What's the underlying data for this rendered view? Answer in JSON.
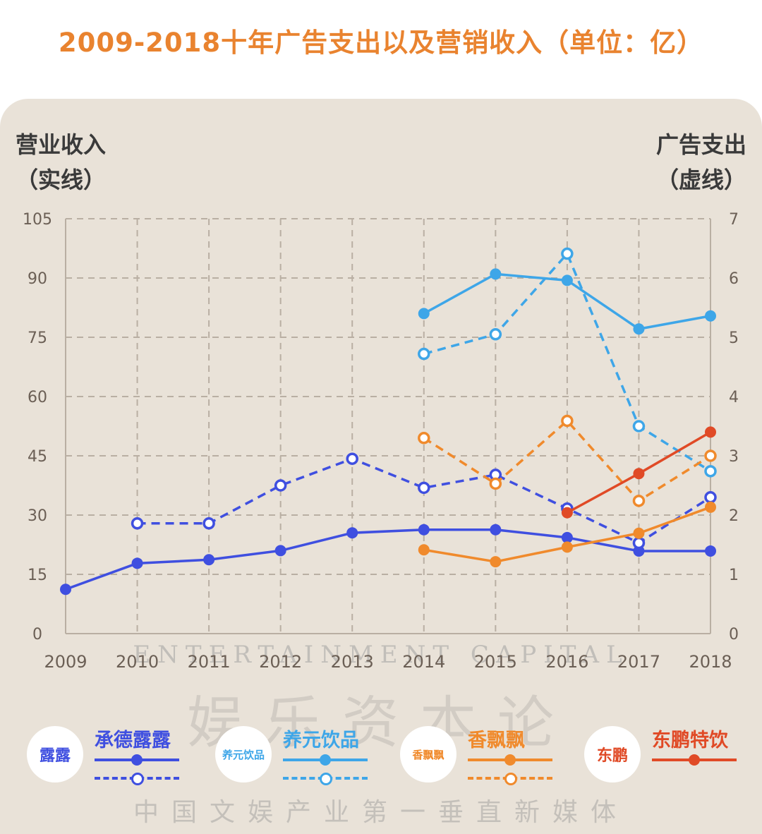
{
  "title": "2009-2018十年广告支出以及营销收入（单位：亿）",
  "left_axis_title": [
    "营业收入",
    "（实线）"
  ],
  "right_axis_title": [
    "广告支出",
    "（虚线）"
  ],
  "watermark_en": "ENTERTAINMENT CAPITAL",
  "watermark_cn_big": "娱乐资本论",
  "watermark_cn": "中国文娱产业第一垂直新媒体",
  "colors": {
    "chengde": "#3f4fe0",
    "yangyuan": "#3ea6e8",
    "xiangpiaopiao": "#f08a2c",
    "dongpeng": "#e04a26",
    "grid": "#b9afa3",
    "tick": "#6b5f55"
  },
  "legend": [
    {
      "name": "承德露露",
      "logo_text": "露露",
      "has_dashed": true,
      "color": "#3f4fe0"
    },
    {
      "name": "养元饮品",
      "logo_text": "养元饮品",
      "has_dashed": true,
      "color": "#3ea6e8"
    },
    {
      "name": "香飘飘",
      "logo_text": "香飘飘",
      "has_dashed": true,
      "color": "#f08a2c"
    },
    {
      "name": "东鹏特饮",
      "logo_text": "东鹏",
      "has_dashed": false,
      "color": "#e04a26"
    }
  ],
  "chart_data": {
    "type": "line",
    "x": [
      "2009",
      "2010",
      "2011",
      "2012",
      "2013",
      "2014",
      "2015",
      "2016",
      "2017",
      "2018"
    ],
    "y_left": {
      "label": "营业收入",
      "range": [
        0,
        105
      ],
      "ticks": [
        0,
        15,
        30,
        45,
        60,
        75,
        90,
        105
      ]
    },
    "y_right": {
      "label": "广告支出",
      "range": [
        0,
        7
      ],
      "ticks": [
        0,
        1,
        2,
        3,
        4,
        5,
        6,
        7
      ]
    },
    "grid": true,
    "series": [
      {
        "name": "承德露露",
        "axis": "left",
        "style": "solid",
        "color": "#3f4fe0",
        "values": [
          11.2,
          17.8,
          18.7,
          21.0,
          25.5,
          26.3,
          26.3,
          24.3,
          20.9,
          20.9
        ]
      },
      {
        "name": "承德露露",
        "axis": "right",
        "style": "dashed",
        "color": "#3f4fe0",
        "values": [
          null,
          1.86,
          1.86,
          2.5,
          2.95,
          2.46,
          2.68,
          2.11,
          1.53,
          2.3
        ]
      },
      {
        "name": "养元饮品",
        "axis": "left",
        "style": "solid",
        "color": "#3ea6e8",
        "values": [
          null,
          null,
          null,
          null,
          null,
          81.0,
          91.0,
          89.4,
          77.1,
          80.4
        ]
      },
      {
        "name": "养元饮品",
        "axis": "right",
        "style": "dashed",
        "color": "#3ea6e8",
        "values": [
          null,
          null,
          null,
          null,
          null,
          4.72,
          5.05,
          6.41,
          3.5,
          2.74
        ]
      },
      {
        "name": "香飘飘",
        "axis": "left",
        "style": "solid",
        "color": "#f08a2c",
        "values": [
          null,
          null,
          null,
          null,
          null,
          21.2,
          18.2,
          21.9,
          25.4,
          32.0
        ]
      },
      {
        "name": "香飘飘",
        "axis": "right",
        "style": "dashed",
        "color": "#f08a2c",
        "values": [
          null,
          null,
          null,
          null,
          null,
          3.3,
          2.53,
          3.59,
          2.24,
          3.0
        ]
      },
      {
        "name": "东鹏特饮",
        "axis": "left",
        "style": "solid",
        "color": "#e04a26",
        "values": [
          null,
          null,
          null,
          null,
          null,
          null,
          null,
          30.6,
          40.5,
          51.0
        ]
      }
    ]
  }
}
